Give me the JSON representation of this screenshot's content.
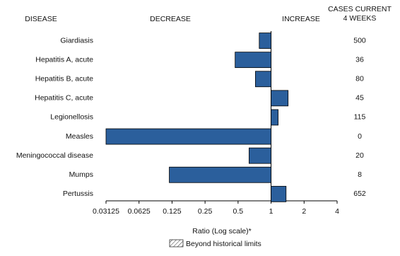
{
  "chart_data": {
    "type": "bar",
    "orientation": "horizontal",
    "log_scale": true,
    "headers": {
      "disease": "DISEASE",
      "decrease": "DECREASE",
      "increase": "INCREASE",
      "cases": [
        "CASES CURRENT",
        "4 WEEKS"
      ]
    },
    "categories": [
      "Giardiasis",
      "Hepatitis A, acute",
      "Hepatitis B, acute",
      "Hepatitis C, acute",
      "Legionellosis",
      "Measles",
      "Meningococcal disease",
      "Mumps",
      "Pertussis"
    ],
    "values": [
      0.78,
      0.47,
      0.72,
      1.43,
      1.16,
      0.03125,
      0.63,
      0.118,
      1.37
    ],
    "cases_current": [
      500,
      36,
      80,
      45,
      115,
      0,
      20,
      8,
      652
    ],
    "color": "#2b5f9c",
    "xlim": [
      0.03125,
      4
    ],
    "xticks": [
      0.03125,
      0.0625,
      0.125,
      0.25,
      0.5,
      1,
      2,
      4
    ],
    "xlabel": "Ratio (Log scale)*",
    "legend": "Beyond historical limits"
  }
}
